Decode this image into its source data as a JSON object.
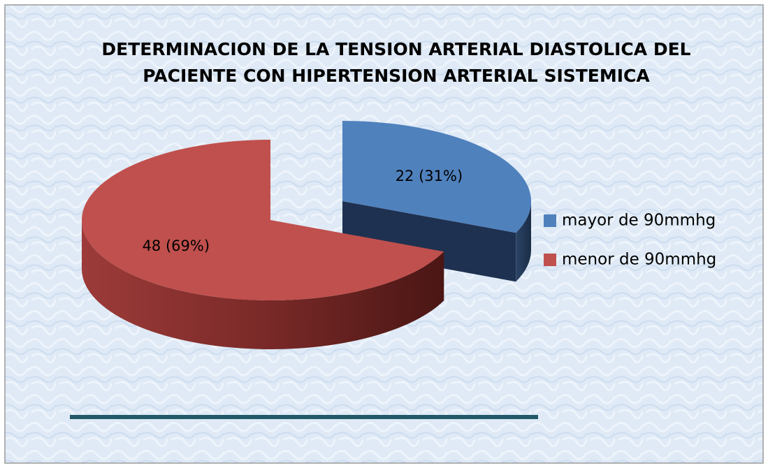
{
  "chart_data": {
    "type": "pie",
    "title": "DETERMINACION DE LA TENSION ARTERIAL DIASTOLICA DEL PACIENTE CON HIPERTENSION ARTERIAL SISTEMICA",
    "categories": [
      "mayor de 90mmhg",
      "menor de 90mmhg"
    ],
    "values": [
      22,
      48
    ],
    "value_labels": [
      "22 (31%)",
      "48 (69%)"
    ],
    "colors": [
      "#4f81bd",
      "#c0504d"
    ],
    "legend": "right"
  }
}
